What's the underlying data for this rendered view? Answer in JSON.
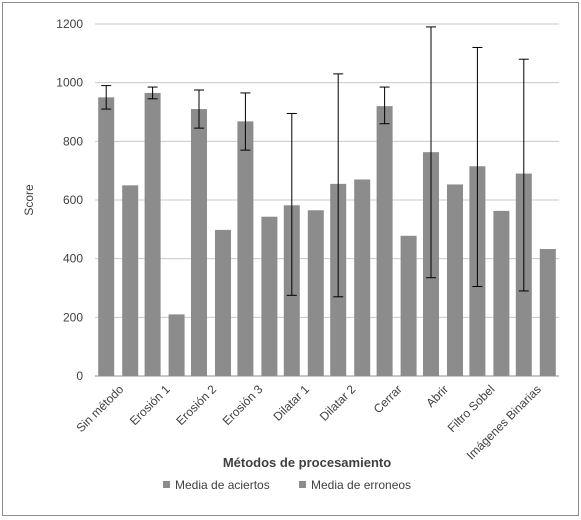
{
  "chart_data": {
    "type": "bar",
    "xlabel": "Métodos de procesamiento",
    "ylabel": "Score",
    "ylim": [
      0,
      1200
    ],
    "yticks": [
      0,
      200,
      400,
      600,
      800,
      1000,
      1200
    ],
    "grid": true,
    "legend_position": "bottom",
    "categories": [
      "Sin método",
      "Erosión 1",
      "Erosión 2",
      "Erosión 3",
      "Dilatar 1",
      "Dilatar 2",
      "Cerrar",
      "Abrir",
      "Filtro Sobel",
      "Imágenes Binarias"
    ],
    "series": [
      {
        "name": "Media de aciertos",
        "color": "#8c8c8c",
        "values": [
          950,
          965,
          910,
          868,
          582,
          655,
          920,
          763,
          715,
          690
        ],
        "error_low": [
          910,
          945,
          845,
          770,
          275,
          270,
          860,
          335,
          305,
          290
        ],
        "error_high": [
          990,
          985,
          975,
          965,
          895,
          1030,
          985,
          1190,
          1120,
          1080
        ]
      },
      {
        "name": "Media de erroneos",
        "color": "#8c8c8c",
        "values": [
          650,
          210,
          498,
          543,
          565,
          670,
          478,
          653,
          563,
          433
        ]
      }
    ]
  }
}
